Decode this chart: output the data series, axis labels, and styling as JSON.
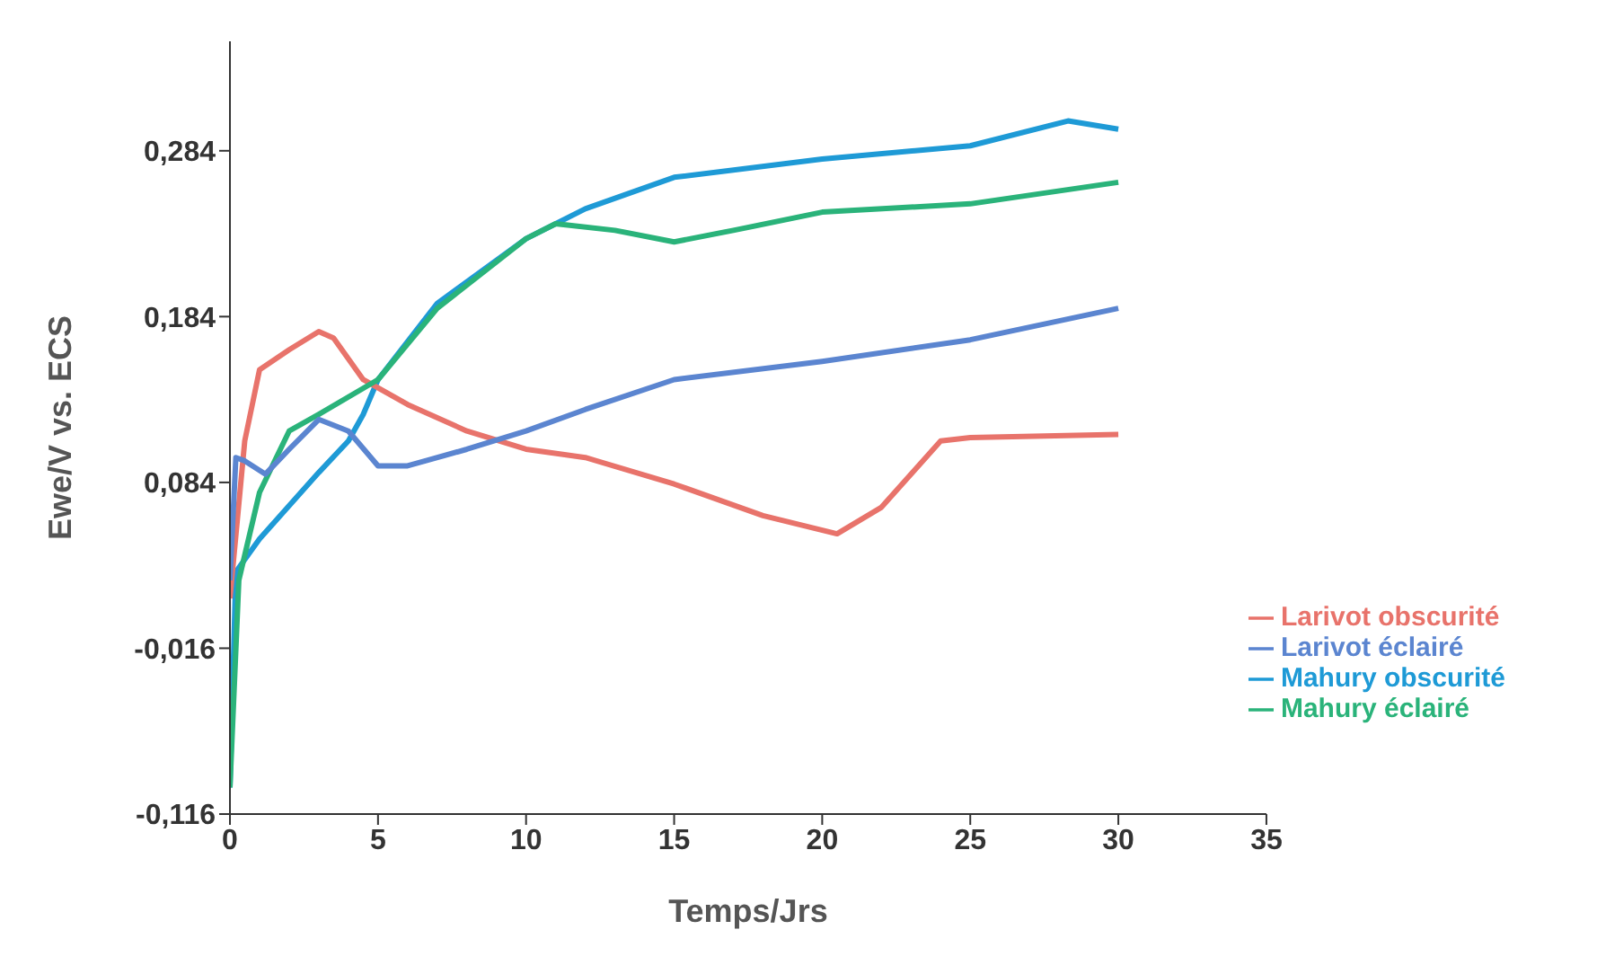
{
  "chart_data": {
    "type": "line",
    "xlabel": "Temps/Jrs",
    "ylabel": "Ewe/V vs. ECS",
    "xlim": [
      0,
      35
    ],
    "xticks": [
      0,
      5,
      10,
      15,
      20,
      25,
      30,
      35
    ],
    "ylim": [
      -0.116,
      0.35
    ],
    "yticks": [
      {
        "value": -0.116,
        "label": "-0,116"
      },
      {
        "value": -0.016,
        "label": "-0,016"
      },
      {
        "value": 0.084,
        "label": "0,084"
      },
      {
        "value": 0.184,
        "label": "0,184"
      },
      {
        "value": 0.284,
        "label": "0,284"
      }
    ],
    "grid": false,
    "legend": "bottom right",
    "marker": "none",
    "line_style": "solid",
    "series": [
      {
        "name": "Mahury obscurité",
        "color": "#1e9ad6",
        "x": [
          0,
          0.2,
          1,
          2,
          3,
          4,
          4.5,
          5,
          7,
          10,
          12,
          15,
          20,
          25,
          28.3,
          30
        ],
        "values": [
          -0.1,
          0.03,
          0.05,
          0.07,
          0.09,
          0.109,
          0.125,
          0.146,
          0.192,
          0.231,
          0.249,
          0.268,
          0.279,
          0.287,
          0.302,
          0.297
        ]
      },
      {
        "name": "Larivot obscurité",
        "color": "#e8736b",
        "x": [
          0,
          0.5,
          1,
          2,
          3,
          3.5,
          4.5,
          6,
          8,
          10,
          12,
          15,
          18,
          20.5,
          22,
          24,
          25,
          30
        ],
        "values": [
          0.014,
          0.109,
          0.152,
          0.164,
          0.175,
          0.171,
          0.146,
          0.131,
          0.115,
          0.104,
          0.099,
          0.083,
          0.064,
          0.053,
          0.069,
          0.109,
          0.111,
          0.113
        ]
      },
      {
        "name": "Mahury éclairé",
        "color": "#2ab37a",
        "x": [
          0,
          0.3,
          1,
          2,
          3,
          5,
          7,
          10,
          11,
          13,
          15,
          17,
          20,
          25,
          30
        ],
        "values": [
          -0.1,
          0.025,
          0.078,
          0.115,
          0.125,
          0.146,
          0.189,
          0.231,
          0.24,
          0.236,
          0.229,
          0.236,
          0.247,
          0.252,
          0.265
        ]
      },
      {
        "name": "Larivot éclairé",
        "color": "#5b85d0",
        "x": [
          0,
          0.2,
          0.5,
          1.2,
          2,
          3,
          4,
          5,
          6,
          8,
          10,
          12,
          15,
          20,
          25,
          30
        ],
        "values": [
          0.025,
          0.099,
          0.097,
          0.089,
          0.104,
          0.122,
          0.115,
          0.094,
          0.094,
          0.104,
          0.115,
          0.128,
          0.146,
          0.157,
          0.17,
          0.189
        ]
      }
    ]
  }
}
